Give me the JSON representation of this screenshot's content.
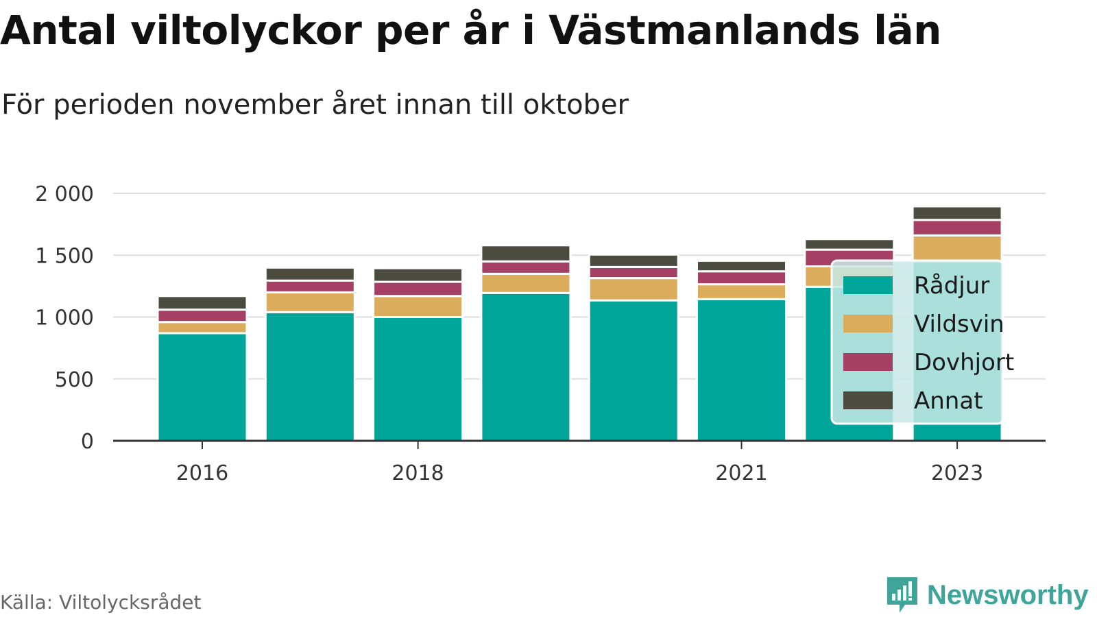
{
  "title": "Antal viltolyckor per år i Västmanlands län",
  "subtitle": "För perioden november året innan till oktober",
  "source": "Källa: Viltolycksrådet",
  "brand": "Newsworthy",
  "colors": {
    "Rådjur": "#00a599",
    "Vildsvin": "#dbac5c",
    "Dovhjort": "#a63f64",
    "Annat": "#4b4b3f",
    "grid": "#dddddd",
    "axis": "#333333",
    "legend_bg": "#c9e9e6",
    "brand": "#3fa49a"
  },
  "chart_data": {
    "type": "bar",
    "stacked": true,
    "categories": [
      "2016",
      "2017",
      "2018",
      "2019",
      "2020",
      "2021",
      "2022",
      "2023"
    ],
    "x_tick_labels": [
      "2016",
      "",
      "2018",
      "",
      "",
      "2021",
      "",
      "2023"
    ],
    "series": [
      {
        "name": "Rådjur",
        "values": [
          870,
          1040,
          1000,
          1195,
          1135,
          1145,
          1245,
          1450
        ]
      },
      {
        "name": "Vildsvin",
        "values": [
          90,
          160,
          170,
          155,
          180,
          120,
          165,
          210
        ]
      },
      {
        "name": "Dovhjort",
        "values": [
          100,
          95,
          115,
          100,
          90,
          105,
          135,
          125
        ]
      },
      {
        "name": "Annat",
        "values": [
          110,
          105,
          110,
          130,
          100,
          85,
          85,
          110
        ]
      }
    ],
    "ylim": [
      0,
      2000
    ],
    "y_ticks": [
      0,
      500,
      1000,
      1500,
      2000
    ],
    "y_tick_labels": [
      "0",
      "500",
      "1 000",
      "1 500",
      "2 000"
    ],
    "grid": true,
    "legend_position": "right"
  }
}
